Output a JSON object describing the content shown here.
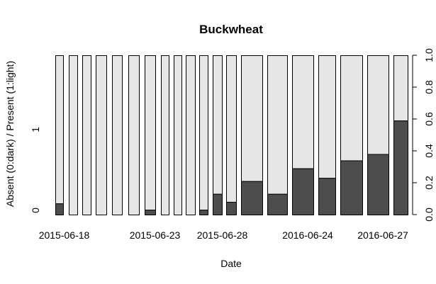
{
  "chart_data": {
    "type": "bar",
    "stacked": true,
    "title": "Buckwheat",
    "xlabel": "Date",
    "ylabel": "Absent (0:dark) / Present (1:light)",
    "left_ticks": [
      "0",
      "1"
    ],
    "right_ticks": [
      "0.0",
      "0.2",
      "0.4",
      "0.6",
      "0.8",
      "1.0"
    ],
    "ylim": [
      0,
      1
    ],
    "colors": {
      "absent": "#4d4d4d",
      "present": "#e6e6e6"
    },
    "x_tick_labels": [
      "2015-06-18",
      "2015-06-23",
      "2015-06-28",
      "2016-06-24",
      "2016-06-27"
    ],
    "bars": [
      {
        "absent": 0.07
      },
      {
        "absent": 0.0
      },
      {
        "absent": 0.0
      },
      {
        "absent": 0.0
      },
      {
        "absent": 0.0
      },
      {
        "absent": 0.0
      },
      {
        "absent": 0.03
      },
      {
        "absent": 0.0
      },
      {
        "absent": 0.0
      },
      {
        "absent": 0.0
      },
      {
        "absent": 0.03
      },
      {
        "absent": 0.13
      },
      {
        "absent": 0.08
      },
      {
        "absent": 0.21
      },
      {
        "absent": 0.13
      },
      {
        "absent": 0.29
      },
      {
        "absent": 0.23
      },
      {
        "absent": 0.34
      },
      {
        "absent": 0.38
      },
      {
        "absent": 0.59
      }
    ]
  }
}
